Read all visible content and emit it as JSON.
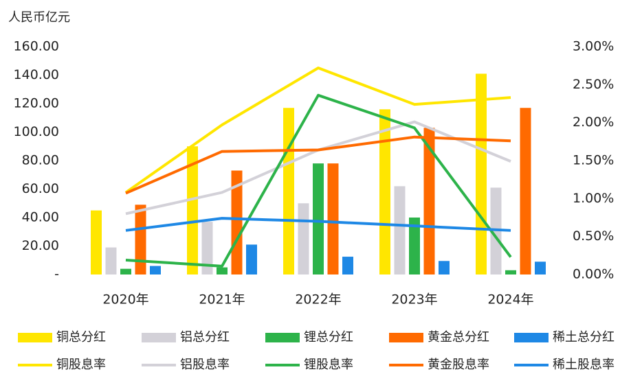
{
  "chart_data": {
    "type": "bar_line_combo",
    "y_axis_label": "人民币亿元",
    "categories": [
      "2020年",
      "2021年",
      "2022年",
      "2023年",
      "2024年"
    ],
    "ylim": [
      0,
      160
    ],
    "yticks": [
      {
        "value": 0,
        "label": "-"
      },
      {
        "value": 20,
        "label": "20.00"
      },
      {
        "value": 40,
        "label": "40.00"
      },
      {
        "value": 60,
        "label": "60.00"
      },
      {
        "value": 80,
        "label": "80.00"
      },
      {
        "value": 100,
        "label": "100.00"
      },
      {
        "value": 120,
        "label": "120.00"
      },
      {
        "value": 140,
        "label": "140.00"
      },
      {
        "value": 160,
        "label": "160.00"
      }
    ],
    "y2lim": [
      0,
      3
    ],
    "y2ticks": [
      {
        "value": 0,
        "label": "0.00%"
      },
      {
        "value": 0.5,
        "label": "0.50%"
      },
      {
        "value": 1,
        "label": "1.00%"
      },
      {
        "value": 1.5,
        "label": "1.50%"
      },
      {
        "value": 2,
        "label": "2.00%"
      },
      {
        "value": 2.5,
        "label": "2.50%"
      },
      {
        "value": 3,
        "label": "3.00%"
      }
    ],
    "series": [
      {
        "name": "铜总分红",
        "kind": "bar",
        "color": "#FFE600",
        "values": [
          45,
          90,
          117,
          116,
          141
        ]
      },
      {
        "name": "铝总分红",
        "kind": "bar",
        "color": "#D3D1D8",
        "values": [
          19,
          37,
          50,
          62,
          61
        ]
      },
      {
        "name": "锂总分红",
        "kind": "bar",
        "color": "#2DB34A",
        "values": [
          4,
          5,
          78,
          40,
          3
        ]
      },
      {
        "name": "黄金总分红",
        "kind": "bar",
        "color": "#FF6A00",
        "values": [
          49,
          73,
          78,
          103,
          117
        ]
      },
      {
        "name": "稀土总分红",
        "kind": "bar",
        "color": "#1E88E5",
        "values": [
          6,
          21,
          12.5,
          9.5,
          9
        ]
      },
      {
        "name": "铜股息率",
        "kind": "line",
        "axis": "y2",
        "color": "#FFE600",
        "values": [
          1.08,
          1.97,
          2.72,
          2.24,
          2.33
        ]
      },
      {
        "name": "铝股息率",
        "kind": "line",
        "axis": "y2",
        "color": "#D3D1D8",
        "values": [
          0.8,
          1.08,
          1.64,
          2.01,
          1.49
        ]
      },
      {
        "name": "锂股息率",
        "kind": "line",
        "axis": "y2",
        "color": "#2DB34A",
        "values": [
          0.19,
          0.11,
          2.36,
          1.93,
          0.23
        ]
      },
      {
        "name": "黄金股息率",
        "kind": "line",
        "axis": "y2",
        "color": "#FF6A00",
        "values": [
          1.07,
          1.62,
          1.64,
          1.81,
          1.76
        ]
      },
      {
        "name": "稀土股息率",
        "kind": "line",
        "axis": "y2",
        "color": "#1E88E5",
        "values": [
          0.58,
          0.74,
          0.7,
          0.64,
          0.58
        ]
      }
    ]
  }
}
